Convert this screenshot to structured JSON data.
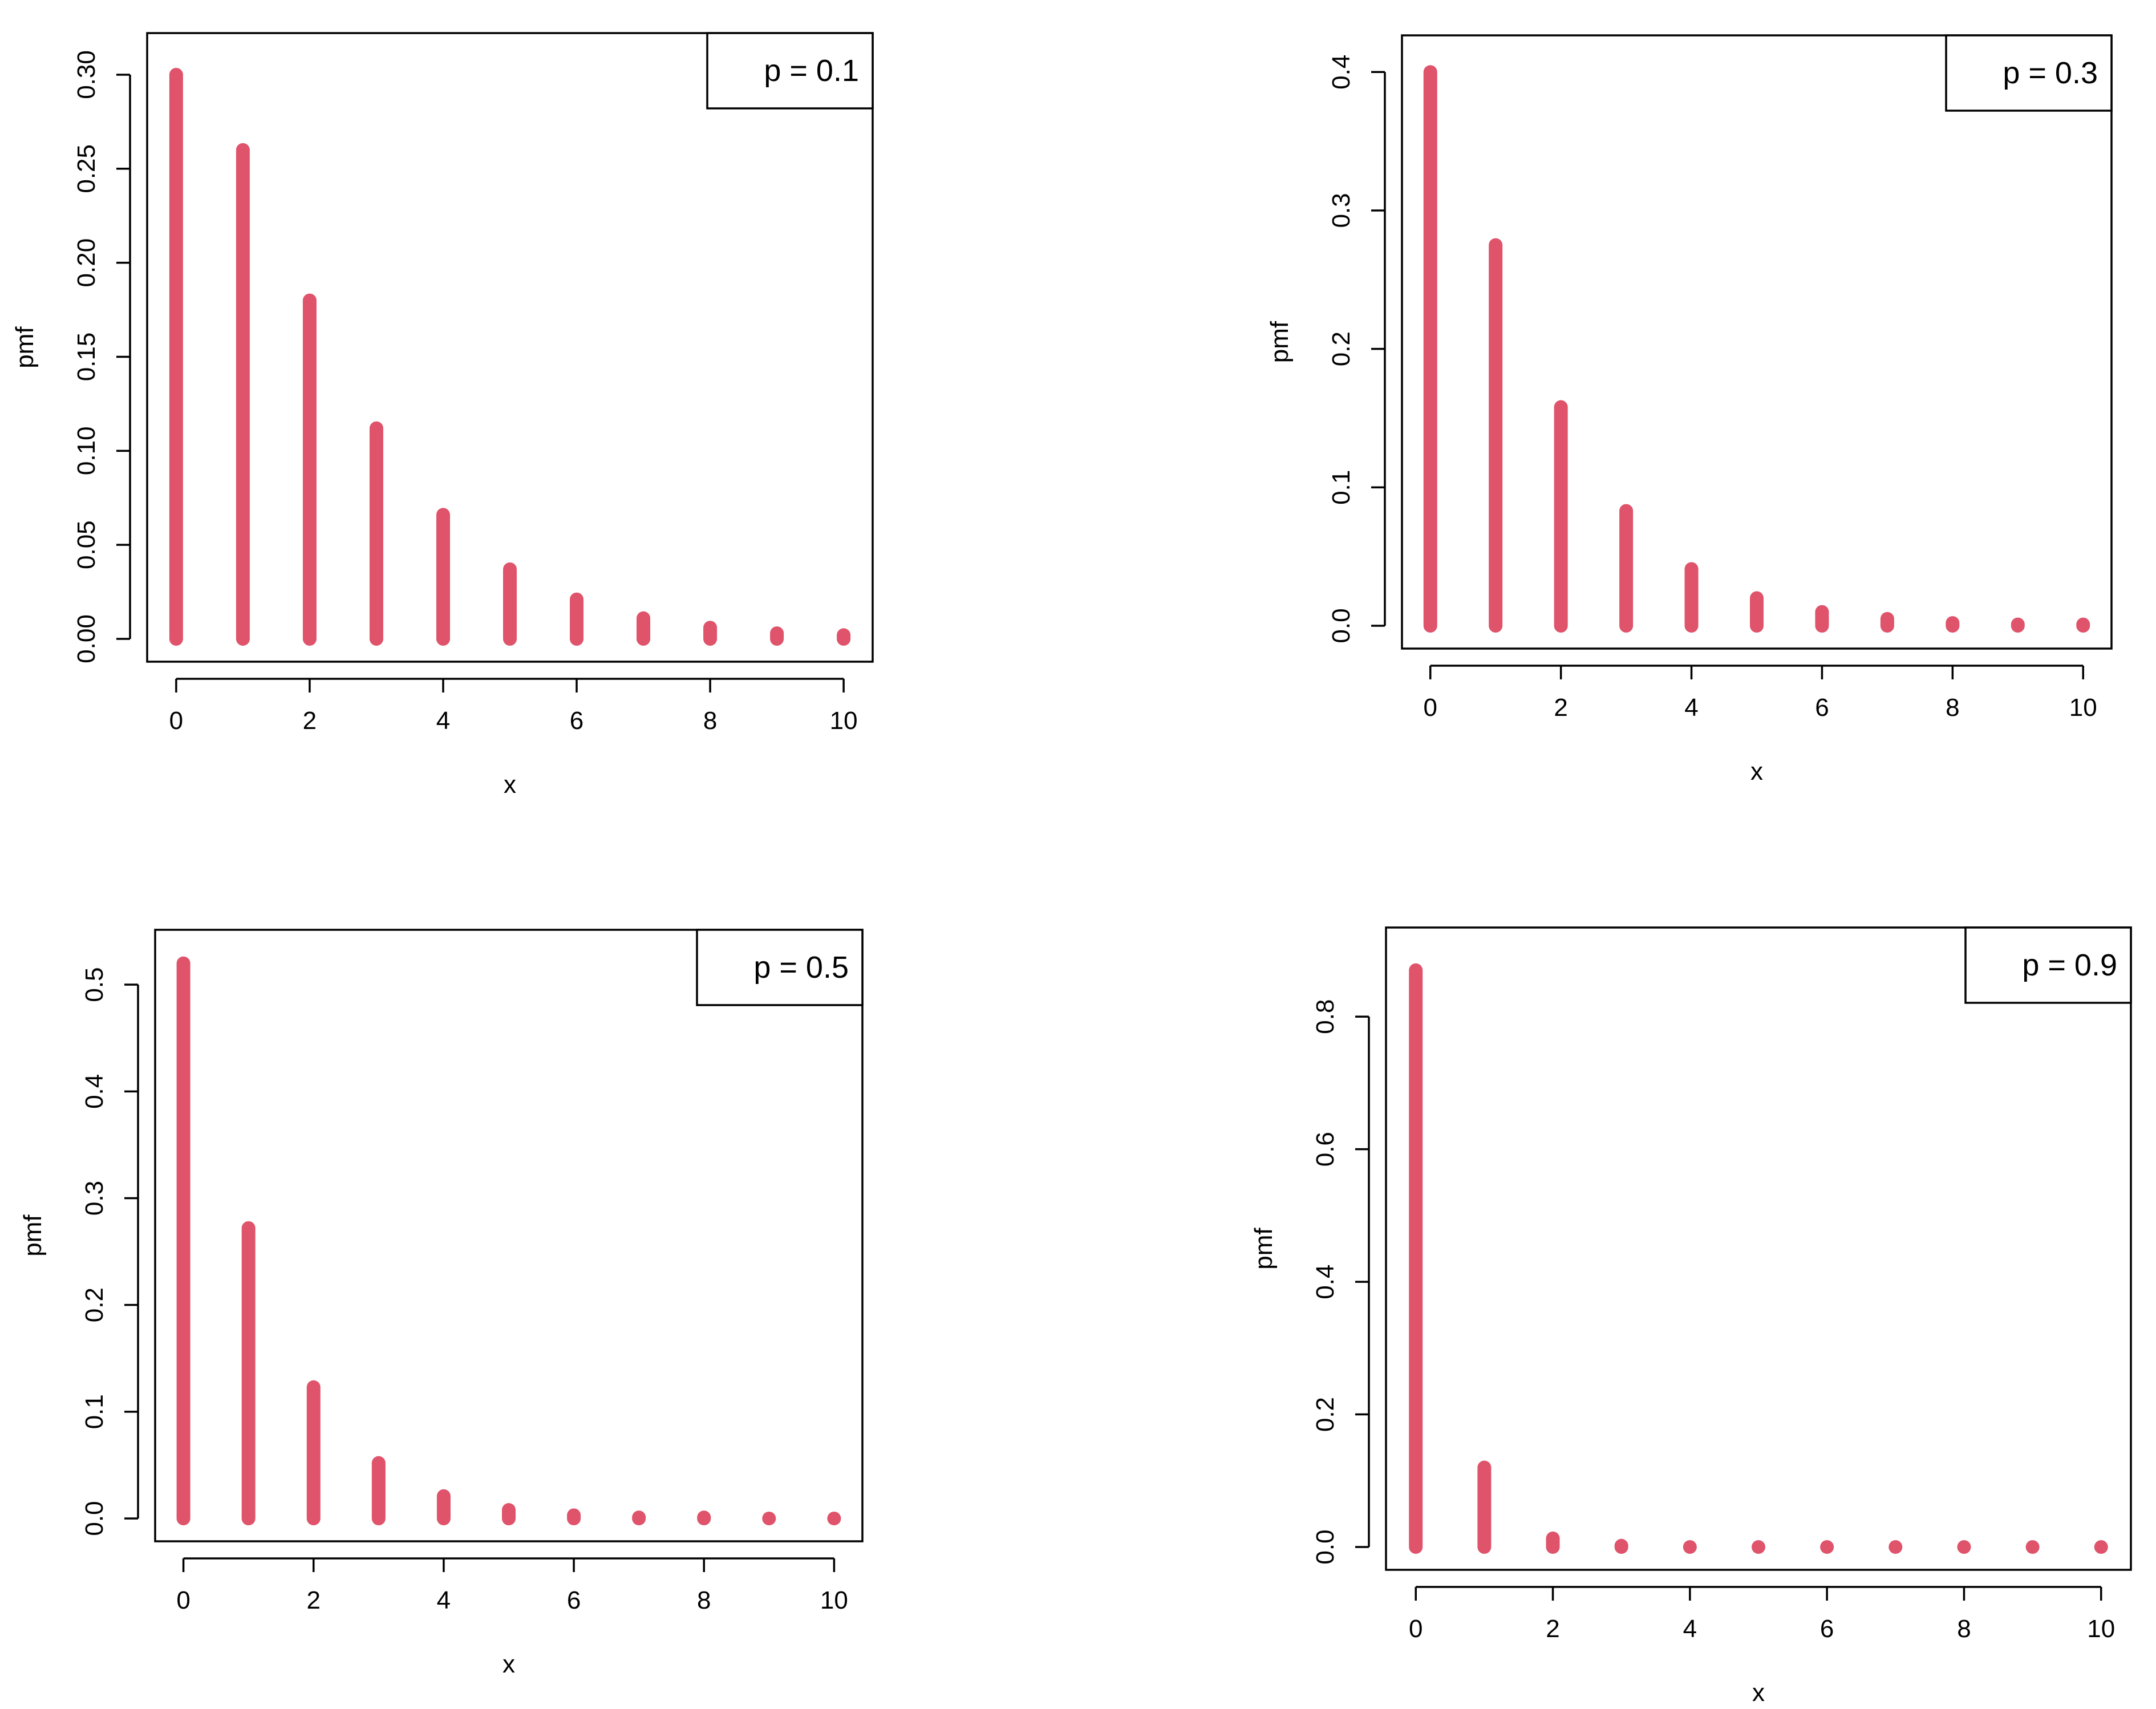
{
  "chart_data": [
    {
      "type": "bar",
      "legend": "p = 0.1",
      "legend_position": "top-right",
      "xlabel": "x",
      "ylabel": "pmf",
      "xlim": [
        0,
        10
      ],
      "ylim": [
        0,
        0.31
      ],
      "xticks": [
        "0",
        "2",
        "4",
        "6",
        "8",
        "10"
      ],
      "yticks": [
        "0.00",
        "0.05",
        "0.10",
        "0.15",
        "0.20",
        "0.25",
        "0.30"
      ],
      "x": [
        0,
        1,
        2,
        3,
        4,
        5,
        6,
        7,
        8,
        9,
        10
      ],
      "values": [
        0.3,
        0.26,
        0.18,
        0.112,
        0.066,
        0.037,
        0.021,
        0.011,
        0.006,
        0.003,
        0.002
      ],
      "color": "#DF536B"
    },
    {
      "type": "bar",
      "legend": "p = 0.3",
      "legend_position": "top-right",
      "xlabel": "x",
      "ylabel": "pmf",
      "xlim": [
        0,
        10
      ],
      "ylim": [
        0,
        0.41
      ],
      "xticks": [
        "0",
        "2",
        "4",
        "6",
        "8",
        "10"
      ],
      "yticks": [
        "0.0",
        "0.1",
        "0.2",
        "0.3",
        "0.4"
      ],
      "x": [
        0,
        1,
        2,
        3,
        4,
        5,
        6,
        7,
        8,
        9,
        10
      ],
      "values": [
        0.4,
        0.275,
        0.158,
        0.083,
        0.041,
        0.02,
        0.01,
        0.005,
        0.002,
        0.001,
        0.001
      ],
      "color": "#DF536B"
    },
    {
      "type": "bar",
      "legend": "p = 0.5",
      "legend_position": "top-right",
      "xlabel": "x",
      "ylabel": "pmf",
      "xlim": [
        0,
        10
      ],
      "ylim": [
        0,
        0.53
      ],
      "xticks": [
        "0",
        "2",
        "4",
        "6",
        "8",
        "10"
      ],
      "yticks": [
        "0.0",
        "0.1",
        "0.2",
        "0.3",
        "0.4",
        "0.5"
      ],
      "x": [
        0,
        1,
        2,
        3,
        4,
        5,
        6,
        7,
        8,
        9,
        10
      ],
      "values": [
        0.52,
        0.272,
        0.123,
        0.052,
        0.021,
        0.008,
        0.003,
        0.001,
        0.001,
        0.0,
        0.0
      ],
      "color": "#DF536B"
    },
    {
      "type": "bar",
      "legend": "p = 0.9",
      "legend_position": "top-right",
      "xlabel": "x",
      "ylabel": "pmf",
      "xlim": [
        0,
        10
      ],
      "ylim": [
        0,
        0.9
      ],
      "xticks": [
        "0",
        "2",
        "4",
        "6",
        "8",
        "10"
      ],
      "yticks": [
        "0.0",
        "0.2",
        "0.4",
        "0.6",
        "0.8"
      ],
      "x": [
        0,
        1,
        2,
        3,
        4,
        5,
        6,
        7,
        8,
        9,
        10
      ],
      "values": [
        0.87,
        0.12,
        0.013,
        0.002,
        0.0,
        0.0,
        0.0,
        0.0,
        0.0,
        0.0,
        0.0
      ],
      "color": "#DF536B"
    }
  ]
}
